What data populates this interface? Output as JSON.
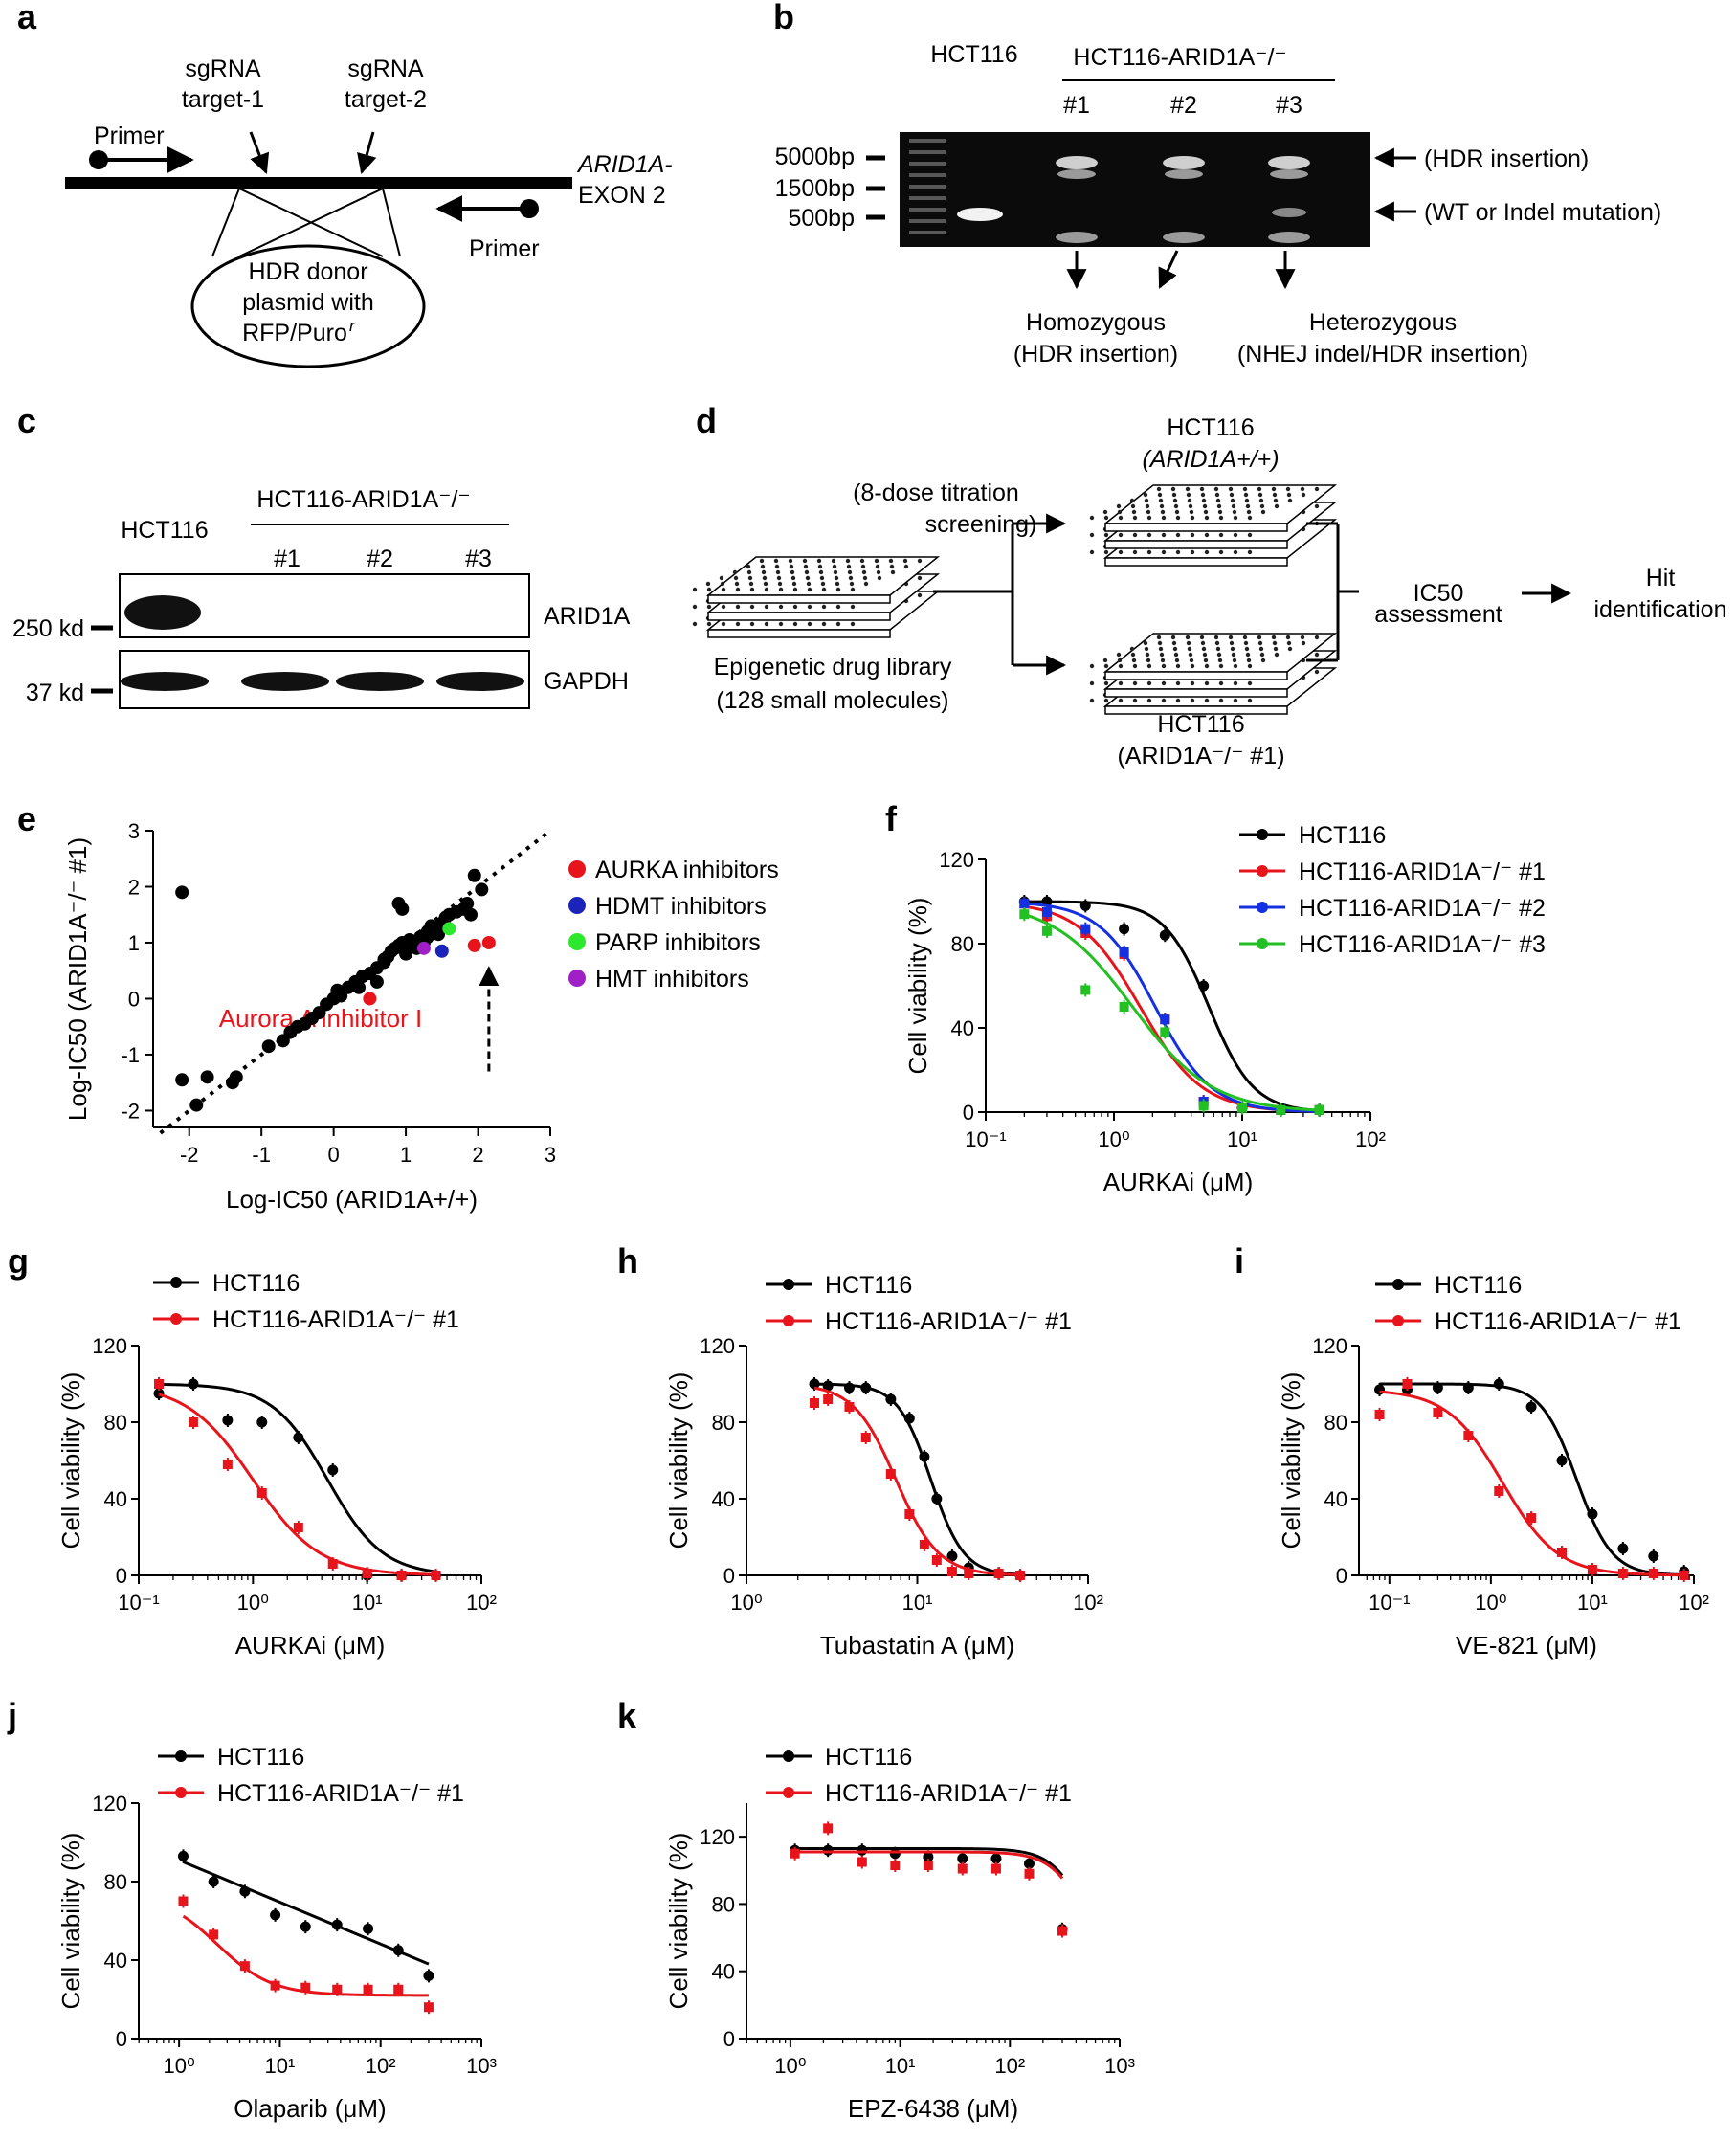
{
  "panels": {
    "a": {
      "letter": "a",
      "primer_left": "Primer",
      "primer_right": "Primer",
      "sg1_line1": "sgRNA",
      "sg1_line2": "target-1",
      "sg2_line1": "sgRNA",
      "sg2_line2": "target-2",
      "gene_line1": "ARID1A-",
      "gene_line2": "EXON 2",
      "donor_line1": "HDR donor",
      "donor_line2": "plasmid with",
      "donor_line3": "RFP/Puro",
      "donor_sup": "r"
    },
    "b": {
      "letter": "b",
      "wt_label": "HCT116",
      "ko_label": "HCT116-ARID1A⁻/⁻",
      "clones": [
        "#1",
        "#2",
        "#3"
      ],
      "ladder": [
        "5000bp",
        "1500bp",
        "500bp"
      ],
      "right_hdr": "(HDR insertion)",
      "right_wt": "(WT or Indel mutation)",
      "homo_line1": "Homozygous",
      "homo_line2": "(HDR insertion)",
      "hetero_line1": "Heterozygous",
      "hetero_line2": "(NHEJ indel/HDR insertion)"
    },
    "c": {
      "letter": "c",
      "wt_label": "HCT116",
      "ko_label": "HCT116-ARID1A⁻/⁻",
      "clones": [
        "#1",
        "#2",
        "#3"
      ],
      "mw_top": "250 kd",
      "mw_bottom": "37 kd",
      "protein_top": "ARID1A",
      "protein_bottom": "GAPDH"
    },
    "d": {
      "letter": "d",
      "screen_line1": "(8-dose titration",
      "screen_line2": "screening)",
      "library_line1": "Epigenetic drug library",
      "library_line2": "(128 small molecules)",
      "wt_line1": "HCT116",
      "wt_line2": "(ARID1A+/+)",
      "ko_line1": "HCT116",
      "ko_line2": "(ARID1A⁻/⁻ #1)",
      "ic50_line1": "IC50",
      "ic50_line2": "assessment",
      "hit_line1": "Hit",
      "hit_line2": "identification"
    },
    "e": {
      "letter": "e",
      "annotation": "Aurora A inhibitor I"
    },
    "f": {
      "letter": "f"
    },
    "g": {
      "letter": "g"
    },
    "h": {
      "letter": "h"
    },
    "i": {
      "letter": "i"
    },
    "j": {
      "letter": "j"
    },
    "k": {
      "letter": "k"
    }
  },
  "chart_data": [
    {
      "id": "e",
      "type": "scatter",
      "xlabel": "Log-IC50 (ARID1A+/+)",
      "ylabel": "Log-IC50 (ARID1A⁻/⁻ #1)",
      "xlim": [
        -2.5,
        3
      ],
      "ylim": [
        -2.3,
        3
      ],
      "xticks": [
        -2,
        -1,
        0,
        1,
        2,
        3
      ],
      "yticks": [
        -2,
        -1,
        0,
        1,
        2,
        3
      ],
      "legend": [
        {
          "name": "AURKA inhibitors",
          "color": "#e8141c"
        },
        {
          "name": "HDMT inhibitors",
          "color": "#1a24b8"
        },
        {
          "name": "PARP inhibitors",
          "color": "#2ee82e"
        },
        {
          "name": "HMT inhibitors",
          "color": "#a020c8"
        }
      ],
      "points_black": [
        [
          -2.1,
          1.9
        ],
        [
          -2.1,
          -1.45
        ],
        [
          -1.9,
          -1.9
        ],
        [
          -1.75,
          -1.4
        ],
        [
          -1.4,
          -1.5
        ],
        [
          -1.35,
          -1.4
        ],
        [
          -0.9,
          -0.85
        ],
        [
          -0.7,
          -0.75
        ],
        [
          -0.6,
          -0.6
        ],
        [
          -0.5,
          -0.5
        ],
        [
          -0.4,
          -0.45
        ],
        [
          -0.3,
          -0.35
        ],
        [
          -0.2,
          -0.25
        ],
        [
          -0.1,
          -0.1
        ],
        [
          0,
          0
        ],
        [
          0.05,
          0.15
        ],
        [
          0.1,
          0.05
        ],
        [
          0.2,
          0.2
        ],
        [
          0.3,
          0.3
        ],
        [
          0.35,
          0.2
        ],
        [
          0.4,
          0.4
        ],
        [
          0.5,
          0.45
        ],
        [
          0.6,
          0.55
        ],
        [
          0.7,
          0.7
        ],
        [
          0.75,
          0.75
        ],
        [
          0.8,
          0.85
        ],
        [
          0.85,
          0.9
        ],
        [
          0.9,
          0.95
        ],
        [
          0.95,
          1.0
        ],
        [
          1.0,
          0.8
        ],
        [
          1.05,
          1.05
        ],
        [
          1.1,
          0.95
        ],
        [
          1.2,
          1.1
        ],
        [
          1.25,
          1.0
        ],
        [
          1.3,
          1.2
        ],
        [
          1.35,
          1.3
        ],
        [
          1.4,
          1.25
        ],
        [
          1.5,
          1.35
        ],
        [
          1.55,
          1.45
        ],
        [
          1.6,
          1.5
        ],
        [
          1.7,
          1.55
        ],
        [
          1.8,
          1.6
        ],
        [
          1.85,
          1.7
        ],
        [
          1.95,
          2.2
        ],
        [
          2.05,
          1.95
        ],
        [
          1.9,
          1.5
        ],
        [
          1.3,
          1.1
        ],
        [
          0.9,
          1.7
        ],
        [
          0.95,
          1.6
        ],
        [
          0.6,
          0.3
        ],
        [
          1.15,
          0.9
        ],
        [
          1.45,
          1.15
        ],
        [
          0.7,
          0.65
        ]
      ],
      "points_colored": [
        {
          "x": 0.5,
          "y": 0.0,
          "color": "#e8141c"
        },
        {
          "x": 1.95,
          "y": 0.95,
          "color": "#e8141c"
        },
        {
          "x": 2.15,
          "y": 1.0,
          "color": "#e8141c"
        },
        {
          "x": 1.5,
          "y": 0.85,
          "color": "#1a24b8"
        },
        {
          "x": 1.6,
          "y": 1.25,
          "color": "#2ee82e"
        },
        {
          "x": 1.25,
          "y": 0.9,
          "color": "#a020c8"
        }
      ]
    },
    {
      "id": "f",
      "type": "line",
      "xlabel": "AURKAi (μM)",
      "ylabel": "Cell viability (%)",
      "ylim": [
        0,
        120
      ],
      "yticks": [
        0,
        40,
        80,
        120
      ],
      "xticks": [
        "10⁻¹",
        "10⁰",
        "10¹",
        "10²"
      ],
      "series": [
        {
          "name": "HCT116",
          "color": "#000000",
          "ic50": 5.5,
          "hill": 2.5,
          "top": 100,
          "x": [
            0.2,
            0.3,
            0.6,
            1.2,
            2.5,
            5,
            10,
            20,
            40
          ],
          "y": [
            100,
            100,
            98,
            87,
            84,
            60,
            2,
            1,
            1
          ]
        },
        {
          "name": "HCT116-ARID1A⁻/⁻ #1",
          "color": "#e8141c",
          "ic50": 1.6,
          "hill": 1.8,
          "top": 100,
          "x": [
            0.2,
            0.3,
            0.6,
            1.2,
            2.5,
            5,
            10,
            20,
            40
          ],
          "y": [
            99,
            93,
            85,
            75,
            44,
            5,
            2,
            1,
            1
          ]
        },
        {
          "name": "HCT116-ARID1A⁻/⁻ #2",
          "color": "#1530e0",
          "ic50": 2.1,
          "hill": 2.0,
          "top": 100,
          "x": [
            0.2,
            0.3,
            0.6,
            1.2,
            2.5,
            5,
            10,
            20,
            40
          ],
          "y": [
            99,
            95,
            87,
            76,
            44,
            5,
            2,
            1,
            1
          ]
        },
        {
          "name": "HCT116-ARID1A⁻/⁻ #3",
          "color": "#22c022",
          "ic50": 1.4,
          "hill": 1.4,
          "top": 100,
          "x": [
            0.2,
            0.3,
            0.6,
            1.2,
            2.5,
            5,
            10,
            20,
            40
          ],
          "y": [
            94,
            86,
            58,
            50,
            38,
            3,
            2,
            1,
            1
          ]
        }
      ]
    },
    {
      "id": "g",
      "type": "line",
      "xlabel": "AURKAi (μM)",
      "ylabel": "Cell viability (%)",
      "ylim": [
        0,
        120
      ],
      "yticks": [
        0,
        40,
        80,
        120
      ],
      "xticks": [
        "10⁻¹",
        "10⁰",
        "10¹",
        "10²"
      ],
      "series": [
        {
          "name": "HCT116",
          "color": "#000000",
          "ic50": 4.5,
          "hill": 1.8,
          "top": 100,
          "x": [
            0.15,
            0.3,
            0.6,
            1.2,
            2.5,
            5,
            10,
            20,
            40
          ],
          "y": [
            95,
            100,
            81,
            80,
            72,
            55,
            0,
            0,
            0
          ]
        },
        {
          "name": "HCT116-ARID1A⁻/⁻ #1",
          "color": "#e8141c",
          "ic50": 1.0,
          "hill": 1.5,
          "top": 100,
          "x": [
            0.15,
            0.3,
            0.6,
            1.2,
            2.5,
            5,
            10,
            20,
            40
          ],
          "y": [
            100,
            80,
            58,
            43,
            25,
            6,
            1,
            0,
            0
          ]
        }
      ]
    },
    {
      "id": "h",
      "type": "line",
      "xlabel": "Tubastatin A (μM)",
      "ylabel": "Cell viability (%)",
      "ylim": [
        0,
        120
      ],
      "yticks": [
        0,
        40,
        80,
        120
      ],
      "xticks": [
        "10⁰",
        "10¹",
        "10²"
      ],
      "series": [
        {
          "name": "HCT116",
          "color": "#000000",
          "ic50": 12,
          "hill": 4.5,
          "top": 100,
          "x": [
            2.5,
            3,
            4,
            5,
            7,
            9,
            11,
            13,
            16,
            20,
            30,
            40
          ],
          "y": [
            100,
            99,
            98,
            98,
            92,
            82,
            62,
            40,
            10,
            4,
            1,
            0
          ]
        },
        {
          "name": "HCT116-ARID1A⁻/⁻ #1",
          "color": "#e8141c",
          "ic50": 7.5,
          "hill": 3.5,
          "top": 100,
          "x": [
            2.5,
            3,
            4,
            5,
            7,
            9,
            11,
            13,
            16,
            20,
            30,
            40
          ],
          "y": [
            90,
            92,
            88,
            72,
            53,
            32,
            16,
            8,
            2,
            1,
            1,
            0
          ]
        }
      ]
    },
    {
      "id": "i",
      "type": "line",
      "xlabel": "VE-821 (μM)",
      "ylabel": "Cell viability (%)",
      "ylim": [
        0,
        120
      ],
      "yticks": [
        0,
        40,
        80,
        120
      ],
      "xticks": [
        "10⁻¹",
        "10⁰",
        "10¹",
        "10²"
      ],
      "series": [
        {
          "name": "HCT116",
          "color": "#000000",
          "ic50": 7,
          "hill": 2.5,
          "top": 100,
          "x": [
            0.08,
            0.15,
            0.3,
            0.6,
            1.2,
            2.5,
            5,
            10,
            20,
            40,
            80
          ],
          "y": [
            97,
            97,
            98,
            98,
            100,
            88,
            60,
            32,
            14,
            10,
            2
          ]
        },
        {
          "name": "HCT116-ARID1A⁻/⁻ #1",
          "color": "#e8141c",
          "ic50": 1.3,
          "hill": 1.6,
          "top": 97,
          "x": [
            0.08,
            0.15,
            0.3,
            0.6,
            1.2,
            2.5,
            5,
            10,
            20,
            40,
            80
          ],
          "y": [
            84,
            100,
            85,
            73,
            44,
            30,
            12,
            3,
            1,
            1,
            0
          ]
        }
      ]
    },
    {
      "id": "j",
      "type": "line",
      "xlabel": "Olaparib (μM)",
      "ylabel": "Cell viability (%)",
      "ylim": [
        0,
        120
      ],
      "yticks": [
        0,
        40,
        80,
        120
      ],
      "xticks": [
        "10⁰",
        "10¹",
        "10²",
        "10³"
      ],
      "series": [
        {
          "name": "HCT116",
          "color": "#000000",
          "x": [
            1.1,
            2.2,
            4.5,
            9,
            18,
            37,
            75,
            150,
            300
          ],
          "y": [
            93,
            80,
            75,
            63,
            57,
            58,
            56,
            45,
            32
          ]
        },
        {
          "name": "HCT116-ARID1A⁻/⁻ #1",
          "color": "#e8141c",
          "x": [
            1.1,
            2.2,
            4.5,
            9,
            18,
            37,
            75,
            150,
            300
          ],
          "y": [
            70,
            53,
            37,
            27,
            26,
            25,
            25,
            25,
            16
          ]
        }
      ]
    },
    {
      "id": "k",
      "type": "line",
      "xlabel": "EPZ-6438 (μM)",
      "ylabel": "Cell viability (%)",
      "ylim": [
        0,
        140
      ],
      "yticks": [
        0,
        40,
        80,
        120
      ],
      "xticks": [
        "10⁰",
        "10¹",
        "10²",
        "10³"
      ],
      "series": [
        {
          "name": "HCT116",
          "color": "#000000",
          "x": [
            1.1,
            2.2,
            4.5,
            9,
            18,
            37,
            75,
            150,
            300
          ],
          "y": [
            112,
            112,
            112,
            110,
            108,
            107,
            107,
            104,
            65
          ]
        },
        {
          "name": "HCT116-ARID1A⁻/⁻ #1",
          "color": "#e8141c",
          "x": [
            1.1,
            2.2,
            4.5,
            9,
            18,
            37,
            75,
            150,
            300
          ],
          "y": [
            110,
            125,
            105,
            103,
            103,
            101,
            101,
            98,
            64
          ]
        }
      ]
    }
  ]
}
